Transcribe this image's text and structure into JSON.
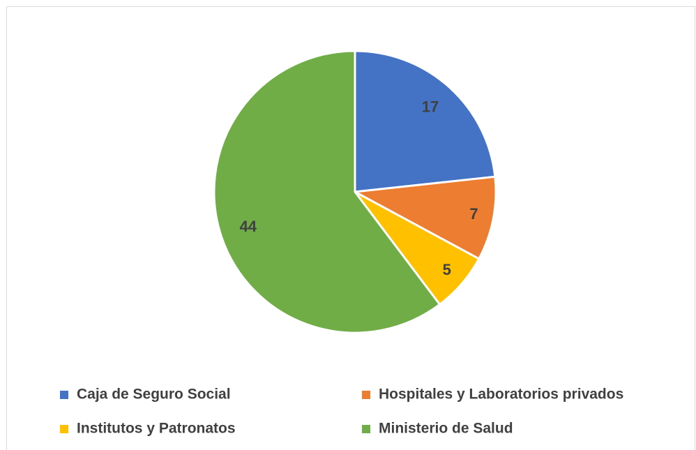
{
  "chart_data": {
    "type": "pie",
    "categories": [
      "Caja de Seguro Social",
      "Hospitales y Laboratorios privados",
      "Institutos y Patronatos",
      "Ministerio de Salud"
    ],
    "values": [
      17,
      7,
      5,
      44
    ],
    "colors": [
      "#4472c4",
      "#ed7d31",
      "#ffc000",
      "#70ad47"
    ],
    "legend": "bottom"
  }
}
